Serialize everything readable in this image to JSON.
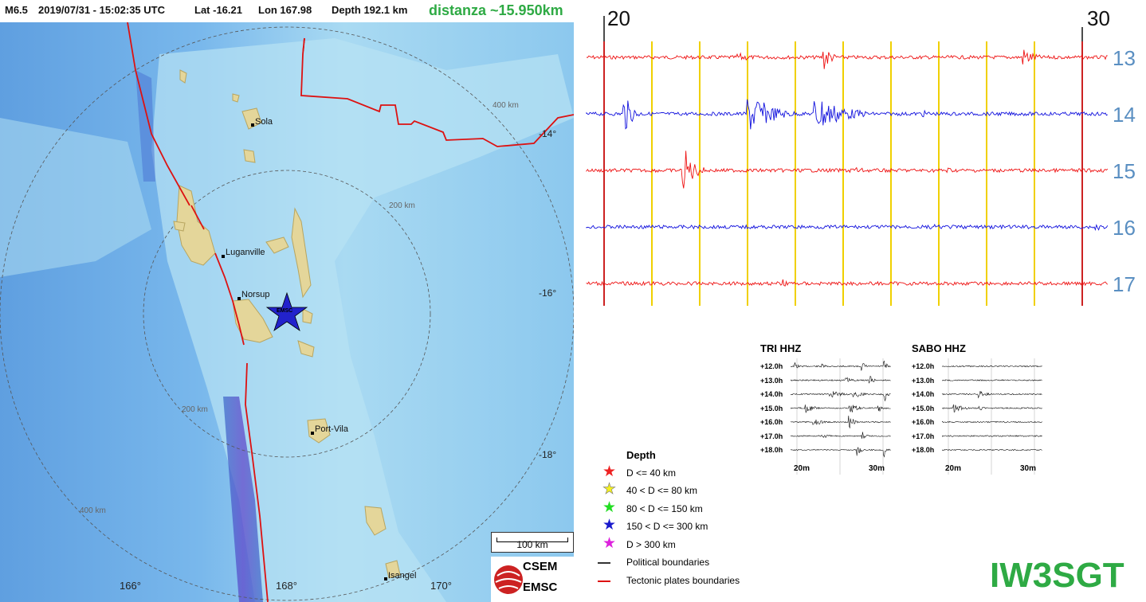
{
  "header": {
    "magnitude": "M6.5",
    "datetime": "2019/07/31 - 15:02:35 UTC",
    "lat": "Lat -16.21",
    "lon": "Lon 167.98",
    "depth": "Depth 192.1 km",
    "distance": "distanza ~15.950km"
  },
  "map": {
    "cities": [
      {
        "name": "Sola"
      },
      {
        "name": "Luganville"
      },
      {
        "name": "Norsup"
      },
      {
        "name": "Port-Vila"
      },
      {
        "name": "Isangel"
      }
    ],
    "ring_labels": [
      "400 km",
      "200 km",
      "200 km",
      "400 km"
    ],
    "lat_ticks": [
      "-14°",
      "-16°",
      "-18°"
    ],
    "lon_ticks": [
      "166°",
      "168°",
      "170°"
    ],
    "event_marker_label": "EMSC",
    "event_marker_color": "#2222cc",
    "scale_label": "100 km",
    "logo_top": "CSEM",
    "logo_bottom": "EMSC"
  },
  "seismogram": {
    "time_ticks": [
      "20",
      "30"
    ],
    "rows": [
      {
        "label": "13",
        "color": "#ee1111"
      },
      {
        "label": "14",
        "color": "#1111dd"
      },
      {
        "label": "15",
        "color": "#ee1111"
      },
      {
        "label": "16",
        "color": "#1111dd"
      },
      {
        "label": "17",
        "color": "#ee1111"
      }
    ],
    "grid_color": "#f0d000",
    "marker_color": "#cc2222"
  },
  "legend": {
    "title": "Depth",
    "depth_classes": [
      {
        "label": "D <= 40 km",
        "color": "#ee2222"
      },
      {
        "label": "40 < D <= 80 km",
        "color": "#f4f020"
      },
      {
        "label": "80 < D <= 150 km",
        "color": "#22dd22"
      },
      {
        "label": "150 < D <= 300 km",
        "color": "#1a1acc"
      },
      {
        "label": "D > 300 km",
        "color": "#dd22dd"
      }
    ],
    "lines": [
      {
        "label": "Political boundaries",
        "color": "#333333"
      },
      {
        "label": "Tectonic plates boundaries",
        "color": "#dd1111"
      }
    ]
  },
  "helicorders": [
    {
      "title": "TRI HHZ",
      "rows": [
        "+12.0h",
        "+13.0h",
        "+14.0h",
        "+15.0h",
        "+16.0h",
        "+17.0h",
        "+18.0h"
      ],
      "x_ticks": [
        "20m",
        "30m"
      ]
    },
    {
      "title": "SABO HHZ",
      "rows": [
        "+12.0h",
        "+13.0h",
        "+14.0h",
        "+15.0h",
        "+16.0h",
        "+17.0h",
        "+18.0h"
      ],
      "x_ticks": [
        "20m",
        "30m"
      ]
    }
  ],
  "callsign": "IW3SGT"
}
